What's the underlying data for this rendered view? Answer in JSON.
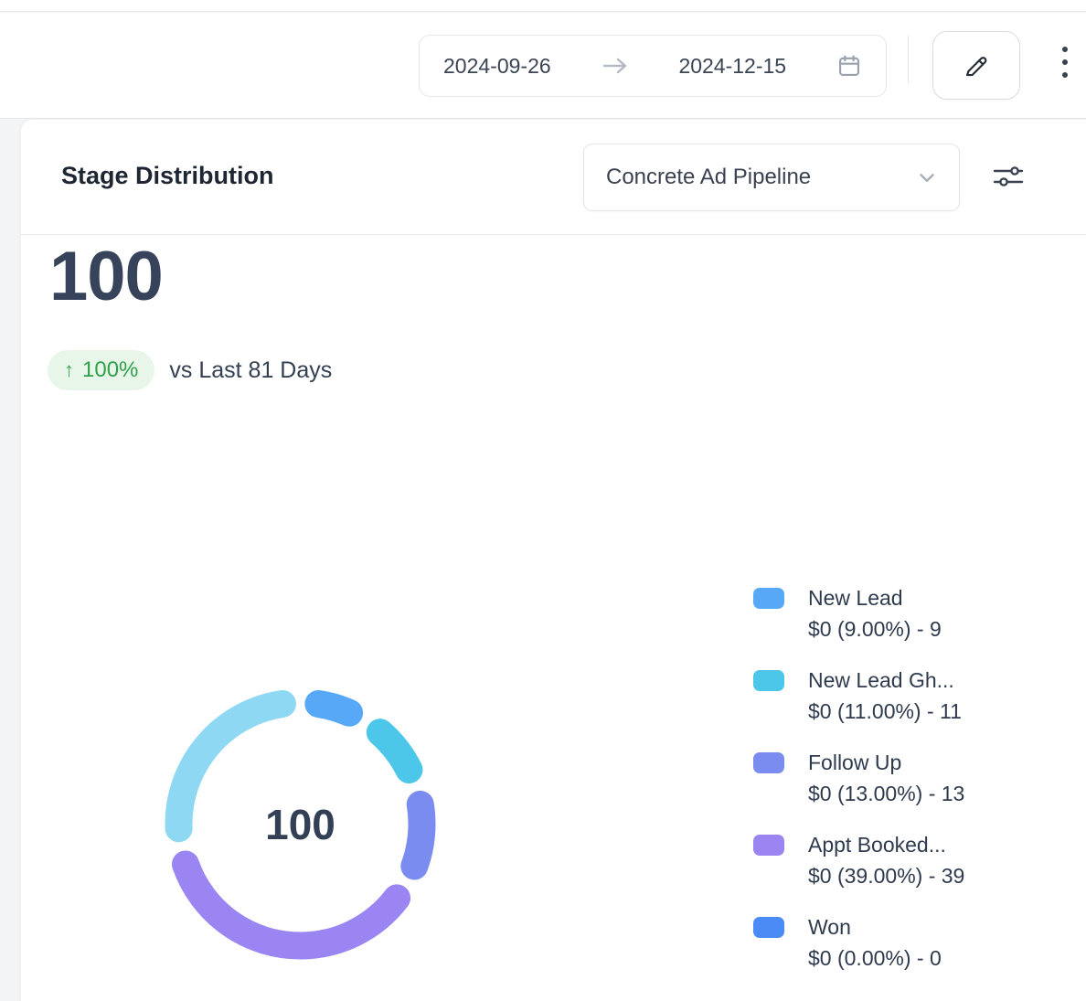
{
  "topbar": {
    "start_date": "2024-09-26",
    "end_date": "2024-12-15"
  },
  "card": {
    "title": "Stage Distribution",
    "pipeline": "Concrete Ad Pipeline",
    "total": "100",
    "change": "100%",
    "comparison": "vs Last 81 Days"
  },
  "chart_data": {
    "type": "pie",
    "title": "Stage Distribution",
    "total": 100,
    "center_label": "100",
    "legend_position": "right",
    "segments": [
      {
        "label": "New Lead",
        "amount": "$0",
        "percent": 9,
        "count": 9,
        "color": "#57a9f7",
        "value_text": "$0 (9.00%) - 9",
        "in_legend": true
      },
      {
        "label": "New Lead Gh...",
        "amount": "$0",
        "percent": 11,
        "count": 11,
        "color": "#4cc7e9",
        "value_text": "$0 (11.00%) - 11",
        "in_legend": true
      },
      {
        "label": "Follow Up",
        "amount": "$0",
        "percent": 13,
        "count": 13,
        "color": "#7a8cf0",
        "value_text": "$0 (13.00%) - 13",
        "in_legend": true
      },
      {
        "label": "Appt Booked...",
        "amount": "$0",
        "percent": 39,
        "count": 39,
        "color": "#9a85f2",
        "value_text": "$0 (39.00%) - 39",
        "in_legend": true
      },
      {
        "label": "Won",
        "amount": "$0",
        "percent": 0,
        "count": 0,
        "color": "#4b8bf5",
        "value_text": "$0 (0.00%) - 0",
        "in_legend": true
      }
    ],
    "unlabeled_remainder": {
      "percent": 28,
      "color": "#8ed8f3"
    }
  }
}
